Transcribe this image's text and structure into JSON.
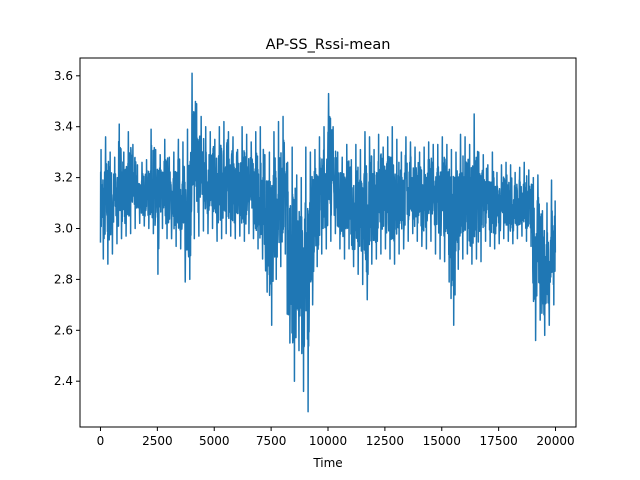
{
  "chart_data": {
    "type": "line",
    "title": "AP-SS_Rssi-mean",
    "xlabel": "Time",
    "ylabel": "",
    "xlim": [
      -900,
      20900
    ],
    "ylim": [
      2.22,
      3.67
    ],
    "x_ticks": [
      0,
      2500,
      5000,
      7500,
      10000,
      12500,
      15000,
      17500,
      20000
    ],
    "x_tick_labels": [
      "0",
      "2500",
      "5000",
      "7500",
      "10000",
      "12500",
      "15000",
      "17500",
      "20000"
    ],
    "y_ticks": [
      2.4,
      2.6,
      2.8,
      3.0,
      3.2,
      3.4,
      3.6
    ],
    "y_tick_labels": [
      "2.4",
      "2.6",
      "2.8",
      "3.0",
      "3.2",
      "3.4",
      "3.6"
    ],
    "grid": false,
    "series": [
      {
        "color": "#1f77b4",
        "x": [
          0,
          200,
          400,
          600,
          800,
          1000,
          1200,
          1400,
          1600,
          1800,
          2000,
          2200,
          2400,
          2600,
          2800,
          3000,
          3200,
          3400,
          3600,
          3800,
          4000,
          4200,
          4400,
          4600,
          4800,
          5000,
          5200,
          5400,
          5600,
          5800,
          6000,
          6200,
          6400,
          6600,
          6800,
          7000,
          7200,
          7400,
          7600,
          7800,
          8000,
          8200,
          8400,
          8600,
          8800,
          9000,
          9200,
          9400,
          9600,
          9800,
          10000,
          10200,
          10400,
          10600,
          10800,
          11000,
          11200,
          11400,
          11600,
          11800,
          12000,
          12200,
          12400,
          12600,
          12800,
          13000,
          13200,
          13400,
          13600,
          13800,
          14000,
          14200,
          14400,
          14600,
          14800,
          15000,
          15200,
          15400,
          15600,
          15800,
          16000,
          16200,
          16400,
          16600,
          16800,
          17000,
          17200,
          17400,
          17600,
          17800,
          18000,
          18200,
          18400,
          18600,
          18800,
          19000,
          19200,
          19400,
          19600,
          19800
        ],
        "high": [
          3.31,
          3.36,
          3.3,
          3.28,
          3.41,
          3.3,
          3.38,
          3.33,
          3.25,
          3.26,
          3.27,
          3.39,
          3.31,
          3.29,
          3.35,
          3.28,
          3.3,
          3.35,
          3.34,
          3.39,
          3.61,
          3.49,
          3.44,
          3.4,
          3.38,
          3.35,
          3.4,
          3.42,
          3.38,
          3.36,
          3.31,
          3.4,
          3.37,
          3.34,
          3.38,
          3.4,
          3.29,
          3.3,
          3.38,
          3.42,
          3.44,
          3.26,
          3.32,
          3.21,
          3.2,
          3.32,
          3.3,
          3.31,
          3.36,
          3.4,
          3.53,
          3.4,
          3.3,
          3.28,
          3.33,
          3.27,
          3.33,
          3.31,
          3.38,
          3.36,
          3.31,
          3.37,
          3.32,
          3.36,
          3.4,
          3.35,
          3.3,
          3.36,
          3.34,
          3.32,
          3.3,
          3.32,
          3.34,
          3.33,
          3.33,
          3.36,
          3.33,
          3.31,
          3.3,
          3.37,
          3.36,
          3.33,
          3.45,
          3.3,
          3.29,
          3.25,
          3.3,
          3.22,
          3.25,
          3.26,
          3.25,
          3.22,
          3.24,
          3.26,
          3.23,
          3.2,
          3.21,
          3.07,
          3.1,
          3.19
        ],
        "low": [
          2.88,
          2.86,
          2.9,
          2.94,
          2.96,
          2.97,
          2.98,
          3.0,
          3.02,
          3.01,
          3.0,
          2.98,
          2.82,
          3.0,
          2.96,
          2.96,
          2.93,
          2.92,
          2.79,
          2.8,
          2.96,
          2.97,
          2.99,
          2.98,
          3.0,
          2.95,
          2.96,
          2.98,
          2.97,
          2.96,
          2.97,
          2.95,
          2.98,
          2.96,
          2.92,
          2.88,
          2.75,
          2.62,
          2.8,
          2.85,
          2.9,
          2.55,
          2.4,
          2.52,
          2.36,
          2.28,
          2.7,
          2.85,
          2.9,
          2.92,
          2.95,
          2.98,
          2.92,
          2.88,
          2.92,
          2.85,
          2.82,
          2.78,
          2.72,
          2.86,
          2.88,
          2.9,
          2.92,
          2.88,
          2.86,
          2.9,
          2.92,
          2.95,
          2.98,
          2.95,
          2.93,
          2.92,
          2.95,
          2.9,
          2.88,
          2.87,
          2.79,
          2.62,
          2.84,
          2.88,
          2.9,
          2.86,
          2.88,
          2.87,
          2.95,
          2.93,
          2.92,
          2.94,
          2.96,
          2.95,
          2.94,
          2.96,
          2.97,
          2.95,
          2.93,
          2.56,
          2.64,
          2.58,
          2.62,
          2.7
        ]
      }
    ]
  }
}
